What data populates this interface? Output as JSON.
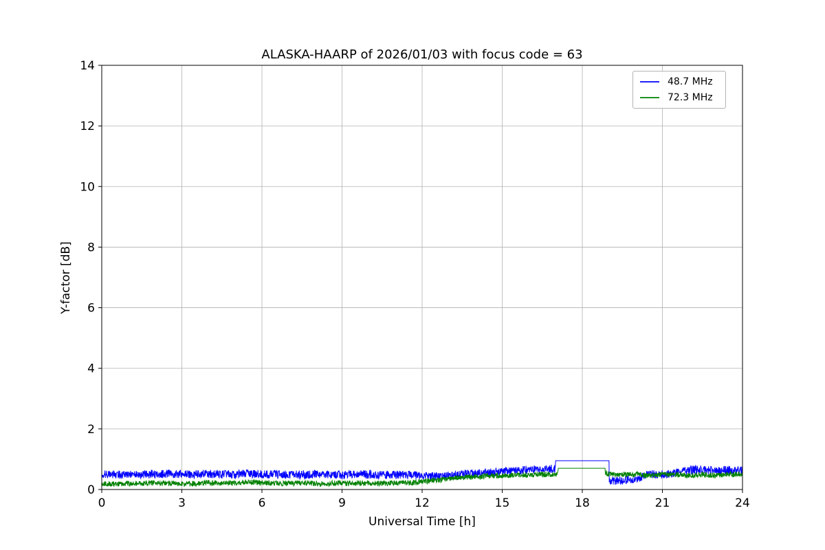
{
  "chart_data": {
    "type": "line",
    "title": "ALASKA-HAARP of 2026/01/03 with focus code = 63",
    "xlabel": "Universal Time [h]",
    "ylabel": "Y-factor [dB]",
    "xlim": [
      0,
      24
    ],
    "ylim": [
      0,
      14
    ],
    "xticks": [
      0,
      3,
      6,
      9,
      12,
      15,
      18,
      21,
      24
    ],
    "yticks": [
      0,
      2,
      4,
      6,
      8,
      10,
      12,
      14
    ],
    "grid": true,
    "grid_color": "#b0b0b0",
    "axis_color": "#000000",
    "legend_position": "upper right",
    "sample_step_h": 0.01,
    "mean_x_step_h": 0.5,
    "series": [
      {
        "name": "48.7 MHz",
        "color": "#0000ff",
        "noise_amplitude": 0.14,
        "seed": 1234567,
        "mean_values": [
          0.5,
          0.5,
          0.48,
          0.5,
          0.5,
          0.52,
          0.5,
          0.5,
          0.52,
          0.5,
          0.5,
          0.52,
          0.5,
          0.5,
          0.5,
          0.48,
          0.5,
          0.5,
          0.48,
          0.5,
          0.5,
          0.48,
          0.48,
          0.48,
          0.46,
          0.42,
          0.45,
          0.5,
          0.52,
          0.55,
          0.58,
          0.62,
          0.65,
          0.68,
          0.68,
          0.95,
          0.95,
          0.95,
          0.3,
          0.3,
          0.35,
          0.5,
          0.5,
          0.55,
          0.65,
          0.65,
          0.6,
          0.65,
          0.62
        ],
        "flat_segment": {
          "x_start": 17.0,
          "x_end": 19.0,
          "value": 0.95
        }
      },
      {
        "name": "72.3 MHz",
        "color": "#008000",
        "noise_amplitude": 0.09,
        "seed": 987654,
        "mean_values": [
          0.2,
          0.18,
          0.2,
          0.2,
          0.22,
          0.2,
          0.18,
          0.2,
          0.22,
          0.2,
          0.22,
          0.25,
          0.22,
          0.2,
          0.2,
          0.22,
          0.2,
          0.2,
          0.22,
          0.2,
          0.22,
          0.2,
          0.22,
          0.22,
          0.25,
          0.3,
          0.35,
          0.4,
          0.42,
          0.45,
          0.45,
          0.48,
          0.48,
          0.5,
          0.5,
          0.7,
          0.7,
          0.7,
          0.5,
          0.5,
          0.5,
          0.45,
          0.5,
          0.5,
          0.45,
          0.5,
          0.45,
          0.5,
          0.5
        ],
        "flat_segment": {
          "x_start": 17.1,
          "x_end": 18.85,
          "value": 0.7
        }
      }
    ]
  }
}
